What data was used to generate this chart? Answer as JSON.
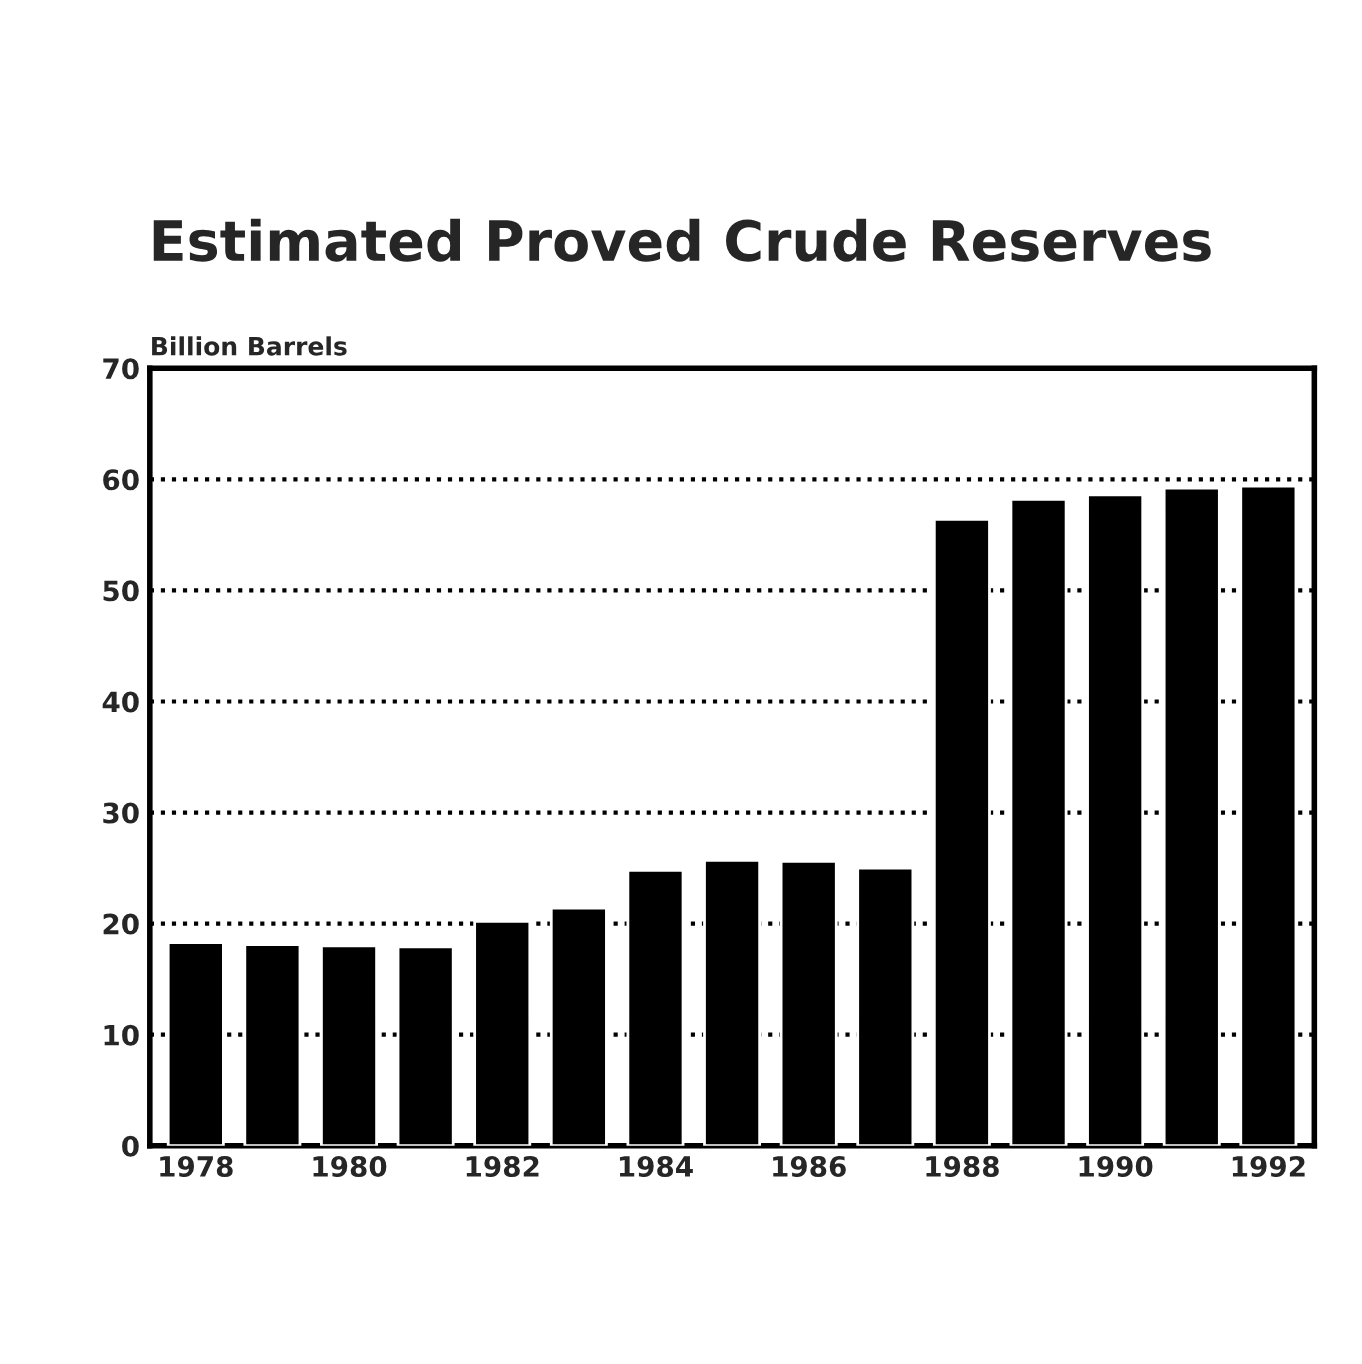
{
  "chart_data": {
    "type": "bar",
    "title": "Estimated Proved Crude Reserves",
    "ylabel": "Billion Barrels",
    "categories": [
      "1978",
      null,
      "1980",
      null,
      "1982",
      null,
      "1984",
      null,
      "1986",
      null,
      "1988",
      null,
      "1990",
      null,
      "1992"
    ],
    "values": [
      18.3,
      18.1,
      18.0,
      17.9,
      20.2,
      21.4,
      24.8,
      25.7,
      25.6,
      25.0,
      56.4,
      58.2,
      58.6,
      59.2,
      59.4
    ],
    "color": "#000000",
    "ylim": [
      0,
      70
    ],
    "yticks": [
      0,
      10,
      20,
      30,
      40,
      50,
      60,
      70
    ],
    "grid": "y",
    "line_style": "dotted"
  }
}
